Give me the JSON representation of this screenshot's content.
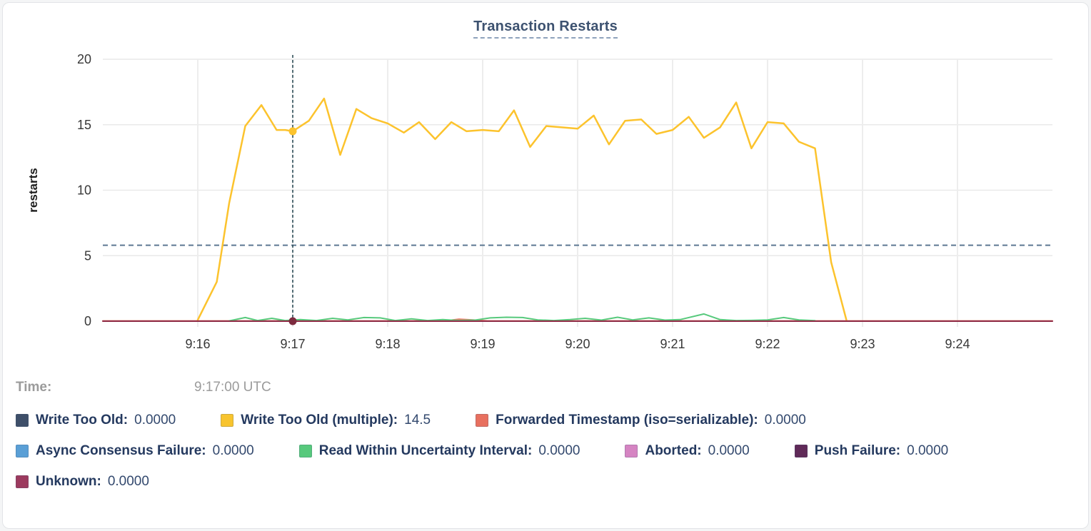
{
  "tooltip": {
    "time_label": "Time:",
    "time_value": "9:17:00 UTC"
  },
  "legend_rows": [
    [
      {
        "label": "Write Too Old",
        "value": "0.0000",
        "color": "#3e4f69"
      },
      {
        "label": "Write Too Old (multiple)",
        "value": "14.5",
        "color": "#f8c42e"
      },
      {
        "label": "Forwarded Timestamp (iso=serializable)",
        "value": "0.0000",
        "color": "#e8705f"
      }
    ],
    [
      {
        "label": "Async Consensus Failure",
        "value": "0.0000",
        "color": "#5a9fd6"
      },
      {
        "label": "Read Within Uncertainty Interval",
        "value": "0.0000",
        "color": "#57c97c"
      },
      {
        "label": "Aborted",
        "value": "0.0000",
        "color": "#d584c2"
      },
      {
        "label": "Push Failure",
        "value": "0.0000",
        "color": "#602a58"
      }
    ],
    [
      {
        "label": "Unknown",
        "value": "0.0000",
        "color": "#9c3a5e"
      }
    ]
  ],
  "chart_data": {
    "type": "line",
    "title": "Transaction Restarts",
    "xlabel": "",
    "ylabel": "restarts",
    "ylim": [
      0,
      20
    ],
    "yticks": [
      0,
      5,
      10,
      15,
      20
    ],
    "xtick_labels": [
      "9:16",
      "9:17",
      "9:18",
      "9:19",
      "9:20",
      "9:21",
      "9:22",
      "9:23",
      "9:24"
    ],
    "xtick_minutes": [
      16,
      17,
      18,
      19,
      20,
      21,
      22,
      23,
      24
    ],
    "x_range_minutes": [
      15,
      25
    ],
    "grid": true,
    "legend_position": "bottom",
    "threshold_value": 5.8,
    "cursor_minute": 17,
    "cursor_time": "9:17:00 UTC",
    "cursor_points": [
      {
        "series": "Write Too Old (multiple)",
        "value": 14.5,
        "color": "#fcc32d",
        "dot_color": "#fcc32d"
      },
      {
        "series": "Unknown",
        "value": 0,
        "color": "#8f2c46",
        "dot_color": "#7d2b3f"
      }
    ],
    "series": [
      {
        "name": "Write Too Old (multiple)",
        "color": "#fcc32d",
        "width": 2.5,
        "points": [
          [
            16.0,
            0.1
          ],
          [
            16.2,
            3.0
          ],
          [
            16.33,
            9.0
          ],
          [
            16.5,
            14.9
          ],
          [
            16.67,
            16.5
          ],
          [
            16.83,
            14.6
          ],
          [
            16.92,
            14.6
          ],
          [
            17.0,
            14.5
          ],
          [
            17.17,
            15.3
          ],
          [
            17.33,
            17.0
          ],
          [
            17.5,
            12.7
          ],
          [
            17.67,
            16.2
          ],
          [
            17.83,
            15.5
          ],
          [
            18.0,
            15.1
          ],
          [
            18.17,
            14.4
          ],
          [
            18.33,
            15.2
          ],
          [
            18.5,
            13.9
          ],
          [
            18.67,
            15.2
          ],
          [
            18.83,
            14.5
          ],
          [
            19.0,
            14.6
          ],
          [
            19.17,
            14.5
          ],
          [
            19.33,
            16.1
          ],
          [
            19.5,
            13.3
          ],
          [
            19.67,
            14.9
          ],
          [
            19.83,
            14.8
          ],
          [
            20.0,
            14.7
          ],
          [
            20.17,
            15.7
          ],
          [
            20.33,
            13.5
          ],
          [
            20.5,
            15.3
          ],
          [
            20.67,
            15.4
          ],
          [
            20.83,
            14.3
          ],
          [
            21.0,
            14.6
          ],
          [
            21.17,
            15.6
          ],
          [
            21.33,
            14.0
          ],
          [
            21.5,
            14.8
          ],
          [
            21.67,
            16.7
          ],
          [
            21.83,
            13.2
          ],
          [
            22.0,
            15.2
          ],
          [
            22.17,
            15.1
          ],
          [
            22.33,
            13.7
          ],
          [
            22.5,
            13.2
          ],
          [
            22.67,
            4.5
          ],
          [
            22.83,
            0.1
          ]
        ]
      },
      {
        "name": "Forwarded Timestamp (iso=serializable)",
        "color": "#e8705f",
        "width": 2,
        "points": [
          [
            15.0,
            0.02
          ],
          [
            18.6,
            0.02
          ],
          [
            18.75,
            0.15
          ],
          [
            18.9,
            0.1
          ],
          [
            19.05,
            0.02
          ],
          [
            25.0,
            0.02
          ]
        ]
      },
      {
        "name": "Read Within Uncertainty Interval",
        "color": "#57c97c",
        "width": 2,
        "points": [
          [
            16.33,
            0.02
          ],
          [
            16.5,
            0.28
          ],
          [
            16.63,
            0.05
          ],
          [
            16.78,
            0.22
          ],
          [
            16.92,
            0.05
          ],
          [
            17.08,
            0.12
          ],
          [
            17.25,
            0.05
          ],
          [
            17.42,
            0.22
          ],
          [
            17.58,
            0.1
          ],
          [
            17.75,
            0.28
          ],
          [
            17.92,
            0.25
          ],
          [
            18.08,
            0.05
          ],
          [
            18.25,
            0.18
          ],
          [
            18.42,
            0.05
          ],
          [
            18.58,
            0.12
          ],
          [
            18.75,
            0.05
          ],
          [
            18.92,
            0.08
          ],
          [
            19.08,
            0.25
          ],
          [
            19.25,
            0.3
          ],
          [
            19.42,
            0.28
          ],
          [
            19.58,
            0.1
          ],
          [
            19.75,
            0.05
          ],
          [
            19.92,
            0.12
          ],
          [
            20.08,
            0.22
          ],
          [
            20.25,
            0.08
          ],
          [
            20.42,
            0.3
          ],
          [
            20.58,
            0.1
          ],
          [
            20.75,
            0.25
          ],
          [
            20.92,
            0.08
          ],
          [
            21.08,
            0.12
          ],
          [
            21.33,
            0.55
          ],
          [
            21.5,
            0.12
          ],
          [
            21.67,
            0.05
          ],
          [
            21.83,
            0.06
          ],
          [
            22.0,
            0.1
          ],
          [
            22.17,
            0.28
          ],
          [
            22.33,
            0.1
          ],
          [
            22.5,
            0.04
          ]
        ]
      },
      {
        "name": "Unknown",
        "color": "#8f2c46",
        "width": 2,
        "points": [
          [
            15.0,
            0
          ],
          [
            25.0,
            0
          ]
        ]
      }
    ]
  }
}
